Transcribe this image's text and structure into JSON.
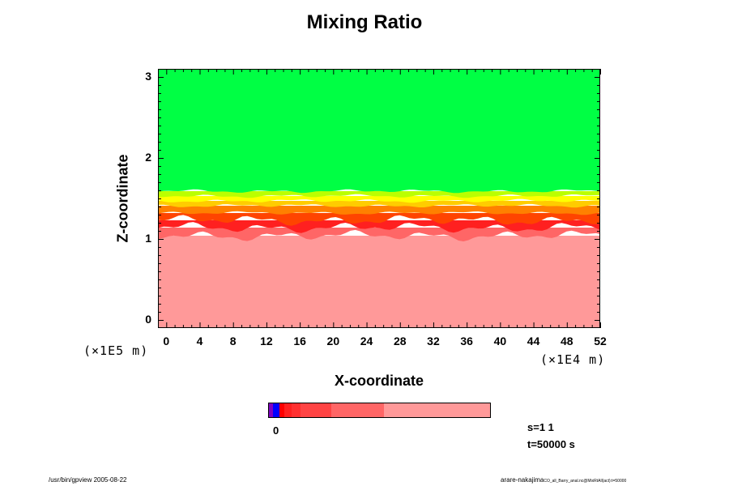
{
  "chart_data": {
    "type": "heatmap",
    "title": "Mixing Ratio",
    "xlabel": "X-coordinate",
    "ylabel": "Z-coordinate",
    "x_unit": "(×1E4 m)",
    "y_unit": "(×1E5 m)",
    "xticks": [
      "0",
      "4",
      "8",
      "12",
      "16",
      "20",
      "24",
      "28",
      "32",
      "36",
      "40",
      "44",
      "48",
      "52"
    ],
    "yticks": [
      "3",
      "2",
      "1",
      "0"
    ],
    "xlim": [
      -1,
      52
    ],
    "ylim": [
      -0.1,
      3.1
    ],
    "layers": [
      {
        "from": -0.1,
        "to": 1.05,
        "color": "#ff9999"
      },
      {
        "from": 1.05,
        "to": 1.15,
        "color": "#ff6666"
      },
      {
        "from": 1.15,
        "to": 1.24,
        "color": "#ff2020"
      },
      {
        "from": 1.24,
        "to": 1.33,
        "color": "#ff4400"
      },
      {
        "from": 1.33,
        "to": 1.42,
        "color": "#ff8000"
      },
      {
        "from": 1.42,
        "to": 1.48,
        "color": "#ffcc00"
      },
      {
        "from": 1.48,
        "to": 1.54,
        "color": "#ffff00"
      },
      {
        "from": 1.54,
        "to": 1.6,
        "color": "#bbff00"
      },
      {
        "from": 1.6,
        "to": 3.1,
        "color": "#00ff44"
      }
    ],
    "colorbar": {
      "segments": [
        {
          "fraction": 0.018,
          "color": "#8000c0"
        },
        {
          "fraction": 0.03,
          "color": "#0000ff"
        },
        {
          "fraction": 0.02,
          "color": "#ff0000"
        },
        {
          "fraction": 0.036,
          "color": "#ff2020"
        },
        {
          "fraction": 0.04,
          "color": "#ff3030"
        },
        {
          "fraction": 0.14,
          "color": "#ff4444"
        },
        {
          "fraction": 0.236,
          "color": "#ff6666"
        },
        {
          "fraction": 0.48,
          "color": "#ff9999"
        }
      ],
      "label": "0"
    }
  },
  "info": {
    "s": "s=1 1",
    "t": "t=50000 s"
  },
  "footer": {
    "left": "/usr/bin/gpview 2005-08-22",
    "right": "arare-nakajima",
    "right_small": "CO_all_Barry_anal.nc@MixRtAll(act):t=50000"
  }
}
